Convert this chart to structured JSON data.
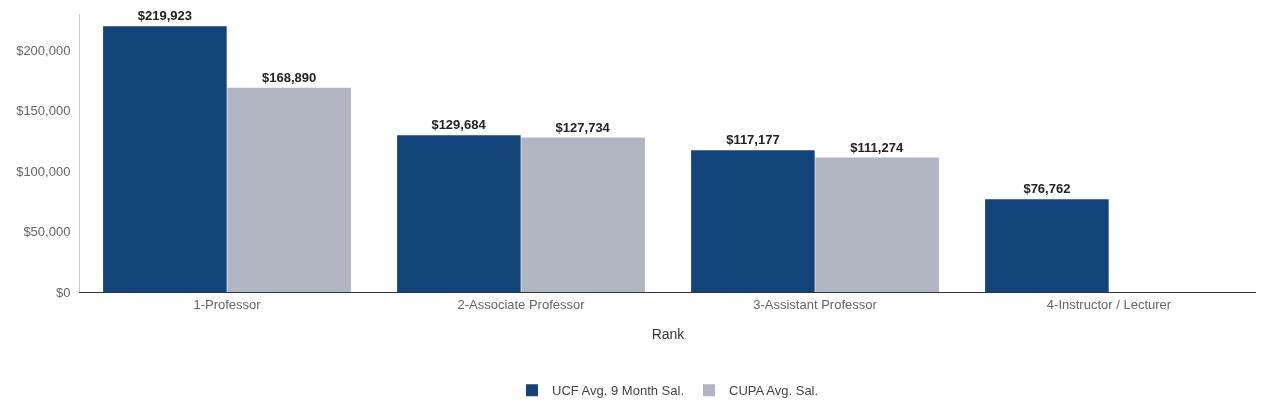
{
  "chart_data": {
    "type": "bar",
    "xlabel": "Rank",
    "categories": [
      "1-Professor",
      "2-Associate Professor",
      "3-Assistant Professor",
      "4-Instructor / Lecturer"
    ],
    "series": [
      {
        "name": "UCF Avg. 9 Month Sal.",
        "color": "#12447a",
        "values": [
          219923,
          129684,
          117177,
          76762
        ],
        "value_labels": [
          "$219,923",
          "$129,684",
          "$117,177",
          "$76,762"
        ]
      },
      {
        "name": "CUPA Avg. Sal.",
        "color": "#b0b5c1",
        "values": [
          168890,
          127734,
          111274,
          null
        ],
        "value_labels": [
          "$168,890",
          "$127,734",
          "$111,274",
          null
        ]
      }
    ],
    "ylim": [
      0,
      230000
    ],
    "yticks": [
      {
        "value": 0,
        "label": "$0"
      },
      {
        "value": 50000,
        "label": "$50,000"
      },
      {
        "value": 100000,
        "label": "$100,000"
      },
      {
        "value": 150000,
        "label": "$150,000"
      },
      {
        "value": 200000,
        "label": "$200,000"
      }
    ],
    "grid": false,
    "legend": "bottom"
  }
}
